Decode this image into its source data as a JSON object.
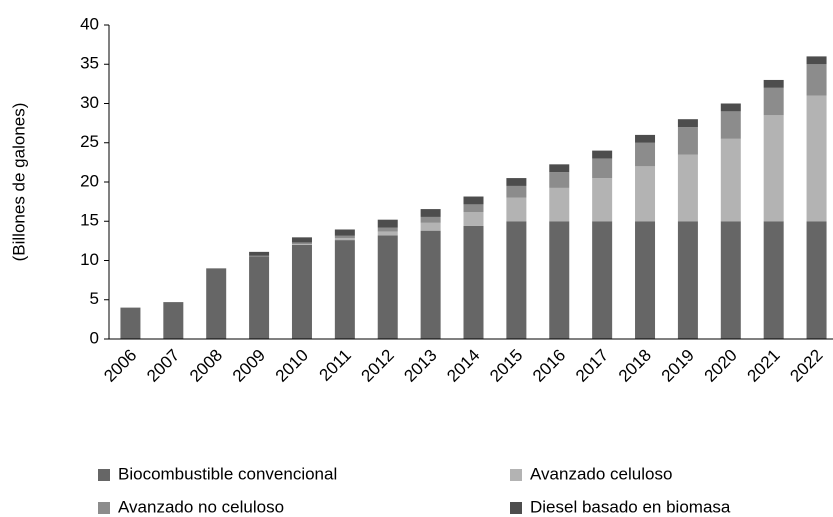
{
  "chart_data": {
    "type": "stacked_bar",
    "y_label": "(Billones de galones)",
    "categories": [
      "2006",
      "2007",
      "2008",
      "2009",
      "2010",
      "2011",
      "2012",
      "2013",
      "2014",
      "2015",
      "2016",
      "2017",
      "2018",
      "2019",
      "2020",
      "2021",
      "2022"
    ],
    "series": [
      {
        "name": "Biocombustible convencional",
        "color": "#666666",
        "values": [
          4.0,
          4.7,
          9.0,
          10.5,
          12.0,
          12.6,
          13.2,
          13.8,
          14.4,
          15,
          15,
          15,
          15,
          15,
          15,
          15,
          15
        ]
      },
      {
        "name": "Avanzado celuloso",
        "color": "#b3b3b3",
        "values": [
          0,
          0,
          0,
          0,
          0.1,
          0.25,
          0.5,
          1.0,
          1.75,
          3.0,
          4.25,
          5.5,
          7.0,
          8.5,
          10.5,
          13.5,
          16
        ]
      },
      {
        "name": "Avanzado no celuloso",
        "color": "#8c8c8c",
        "values": [
          0,
          0,
          0,
          0.1,
          0.2,
          0.3,
          0.5,
          0.75,
          1.0,
          1.5,
          2.0,
          2.5,
          3.0,
          3.5,
          3.5,
          3.5,
          4.0
        ]
      },
      {
        "name": "Diesel basado en biomasa",
        "color": "#4d4d4d",
        "values": [
          0,
          0,
          0,
          0.5,
          0.65,
          0.8,
          1.0,
          1.0,
          1.0,
          1.0,
          1.0,
          1.0,
          1.0,
          1.0,
          1.0,
          1.0,
          1.0
        ]
      }
    ],
    "ylim": [
      0,
      40
    ],
    "yticks": [
      0,
      5,
      10,
      15,
      20,
      25,
      30,
      35,
      40
    ]
  }
}
